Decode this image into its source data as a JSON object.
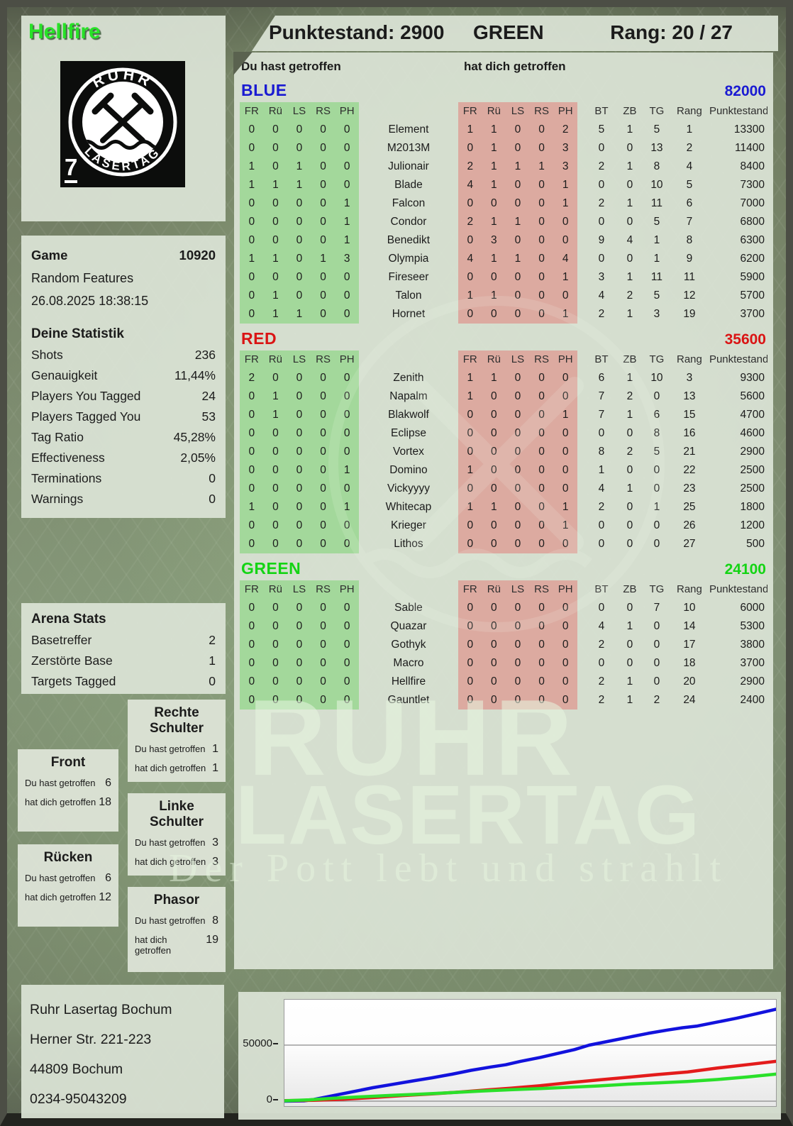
{
  "header": {
    "player_name": "Hellfire",
    "score": "Punktestand: 2900",
    "team": "GREEN",
    "rank": "Rang: 20 / 27"
  },
  "logo": {
    "arc_top": "RUHR",
    "arc_bottom": "LASERTAG",
    "badge": "7"
  },
  "main": {
    "left_col_label": "Du hast getroffen",
    "right_col_label": "hat dich getroffen",
    "sub_headers": [
      "FR",
      "Rü",
      "LS",
      "RS",
      "PH"
    ],
    "stat_headers": [
      "BT",
      "ZB",
      "TG",
      "Rang",
      "Punktestand:"
    ]
  },
  "sidebar": {
    "game": {
      "label": "Game",
      "number": "10920",
      "mode": "Random Features",
      "datetime": "26.08.2025 18:38:15"
    },
    "your_stats": {
      "title": "Deine Statistik",
      "rows": [
        [
          "Shots",
          "236"
        ],
        [
          "Genauigkeit",
          "11,44%"
        ],
        [
          "Players You Tagged",
          "24"
        ],
        [
          "Players Tagged You",
          "53"
        ],
        [
          "Tag Ratio",
          "45,28%"
        ],
        [
          "Effectiveness",
          "2,05%"
        ],
        [
          "Terminations",
          "0"
        ],
        [
          "Warnings",
          "0"
        ]
      ]
    },
    "arena_stats": {
      "title": "Arena Stats",
      "rows": [
        [
          "Basetreffer",
          "2"
        ],
        [
          "Zerstörte Base",
          "1"
        ],
        [
          "Targets Tagged",
          "0"
        ]
      ]
    },
    "zone_label_you": "Du hast getroffen",
    "zone_label_them": "hat dich getroffen",
    "zones": {
      "front": {
        "title": "Front",
        "you": "6",
        "them": "18"
      },
      "ruecken": {
        "title": "Rücken",
        "you": "6",
        "them": "12"
      },
      "rechte_schulter": {
        "title": "Rechte Schulter",
        "you": "1",
        "them": "1"
      },
      "linke_schulter": {
        "title": "Linke Schulter",
        "you": "3",
        "them": "3"
      },
      "phasor": {
        "title": "Phasor",
        "you": "8",
        "them": "19"
      }
    },
    "address": [
      "Ruhr Lasertag Bochum",
      "Herner Str. 221-223",
      "44809 Bochum",
      "0234-95043209"
    ]
  },
  "watermark": {
    "line1": "RUHR",
    "line2": "LASERTAG",
    "line3": "Der Pott lebt und strahlt"
  },
  "teams": [
    {
      "name": "BLUE",
      "color": "#1a1ad2",
      "total": "82000",
      "rows": [
        {
          "name": "Element",
          "you": [
            "0",
            "0",
            "0",
            "0",
            "0"
          ],
          "them": [
            "1",
            "1",
            "0",
            "0",
            "2"
          ],
          "stats": [
            "5",
            "1",
            "5",
            "1",
            "13300"
          ]
        },
        {
          "name": "M2013M",
          "you": [
            "0",
            "0",
            "0",
            "0",
            "0"
          ],
          "them": [
            "0",
            "1",
            "0",
            "0",
            "3"
          ],
          "stats": [
            "0",
            "0",
            "13",
            "2",
            "11400"
          ]
        },
        {
          "name": "Julionair",
          "you": [
            "1",
            "0",
            "1",
            "0",
            "0"
          ],
          "them": [
            "2",
            "1",
            "1",
            "1",
            "3"
          ],
          "stats": [
            "2",
            "1",
            "8",
            "4",
            "8400"
          ]
        },
        {
          "name": "Blade",
          "you": [
            "1",
            "1",
            "1",
            "0",
            "0"
          ],
          "them": [
            "4",
            "1",
            "0",
            "0",
            "1"
          ],
          "stats": [
            "0",
            "0",
            "10",
            "5",
            "7300"
          ]
        },
        {
          "name": "Falcon",
          "you": [
            "0",
            "0",
            "0",
            "0",
            "1"
          ],
          "them": [
            "0",
            "0",
            "0",
            "0",
            "1"
          ],
          "stats": [
            "2",
            "1",
            "11",
            "6",
            "7000"
          ]
        },
        {
          "name": "Condor",
          "you": [
            "0",
            "0",
            "0",
            "0",
            "1"
          ],
          "them": [
            "2",
            "1",
            "1",
            "0",
            "0"
          ],
          "stats": [
            "0",
            "0",
            "5",
            "7",
            "6800"
          ]
        },
        {
          "name": "Benedikt",
          "you": [
            "0",
            "0",
            "0",
            "0",
            "1"
          ],
          "them": [
            "0",
            "3",
            "0",
            "0",
            "0"
          ],
          "stats": [
            "9",
            "4",
            "1",
            "8",
            "6300"
          ]
        },
        {
          "name": "Olympia",
          "you": [
            "1",
            "1",
            "0",
            "1",
            "3"
          ],
          "them": [
            "4",
            "1",
            "1",
            "0",
            "4"
          ],
          "stats": [
            "0",
            "0",
            "1",
            "9",
            "6200"
          ]
        },
        {
          "name": "Fireseer",
          "you": [
            "0",
            "0",
            "0",
            "0",
            "0"
          ],
          "them": [
            "0",
            "0",
            "0",
            "0",
            "1"
          ],
          "stats": [
            "3",
            "1",
            "11",
            "11",
            "5900"
          ]
        },
        {
          "name": "Talon",
          "you": [
            "0",
            "1",
            "0",
            "0",
            "0"
          ],
          "them": [
            "1",
            "1",
            "0",
            "0",
            "0"
          ],
          "stats": [
            "4",
            "2",
            "5",
            "12",
            "5700"
          ]
        },
        {
          "name": "Hornet",
          "you": [
            "0",
            "1",
            "1",
            "0",
            "0"
          ],
          "them": [
            "0",
            "0",
            "0",
            "0",
            "1"
          ],
          "stats": [
            "2",
            "1",
            "3",
            "19",
            "3700"
          ]
        }
      ]
    },
    {
      "name": "RED",
      "color": "#da1414",
      "total": "35600",
      "rows": [
        {
          "name": "Zenith",
          "you": [
            "2",
            "0",
            "0",
            "0",
            "0"
          ],
          "them": [
            "1",
            "1",
            "0",
            "0",
            "0"
          ],
          "stats": [
            "6",
            "1",
            "10",
            "3",
            "9300"
          ]
        },
        {
          "name": "Napalm",
          "you": [
            "0",
            "1",
            "0",
            "0",
            "0"
          ],
          "them": [
            "1",
            "0",
            "0",
            "0",
            "0"
          ],
          "stats": [
            "7",
            "2",
            "0",
            "13",
            "5600"
          ]
        },
        {
          "name": "Blakwolf",
          "you": [
            "0",
            "1",
            "0",
            "0",
            "0"
          ],
          "them": [
            "0",
            "0",
            "0",
            "0",
            "1"
          ],
          "stats": [
            "7",
            "1",
            "6",
            "15",
            "4700"
          ]
        },
        {
          "name": "Eclipse",
          "you": [
            "0",
            "0",
            "0",
            "0",
            "0"
          ],
          "them": [
            "0",
            "0",
            "0",
            "0",
            "0"
          ],
          "stats": [
            "0",
            "0",
            "8",
            "16",
            "4600"
          ]
        },
        {
          "name": "Vortex",
          "you": [
            "0",
            "0",
            "0",
            "0",
            "0"
          ],
          "them": [
            "0",
            "0",
            "0",
            "0",
            "0"
          ],
          "stats": [
            "8",
            "2",
            "5",
            "21",
            "2900"
          ]
        },
        {
          "name": "Domino",
          "you": [
            "0",
            "0",
            "0",
            "0",
            "1"
          ],
          "them": [
            "1",
            "0",
            "0",
            "0",
            "0"
          ],
          "stats": [
            "1",
            "0",
            "0",
            "22",
            "2500"
          ]
        },
        {
          "name": "Vickyyyy",
          "you": [
            "0",
            "0",
            "0",
            "0",
            "0"
          ],
          "them": [
            "0",
            "0",
            "0",
            "0",
            "0"
          ],
          "stats": [
            "4",
            "1",
            "0",
            "23",
            "2500"
          ]
        },
        {
          "name": "Whitecap",
          "you": [
            "1",
            "0",
            "0",
            "0",
            "1"
          ],
          "them": [
            "1",
            "1",
            "0",
            "0",
            "1"
          ],
          "stats": [
            "2",
            "0",
            "1",
            "25",
            "1800"
          ]
        },
        {
          "name": "Krieger",
          "you": [
            "0",
            "0",
            "0",
            "0",
            "0"
          ],
          "them": [
            "0",
            "0",
            "0",
            "0",
            "1"
          ],
          "stats": [
            "0",
            "0",
            "0",
            "26",
            "1200"
          ]
        },
        {
          "name": "Lithos",
          "you": [
            "0",
            "0",
            "0",
            "0",
            "0"
          ],
          "them": [
            "0",
            "0",
            "0",
            "0",
            "0"
          ],
          "stats": [
            "0",
            "0",
            "0",
            "27",
            "500"
          ]
        }
      ]
    },
    {
      "name": "GREEN",
      "color": "#14d414",
      "total": "24100",
      "rows": [
        {
          "name": "Sable",
          "you": [
            "0",
            "0",
            "0",
            "0",
            "0"
          ],
          "them": [
            "0",
            "0",
            "0",
            "0",
            "0"
          ],
          "stats": [
            "0",
            "0",
            "7",
            "10",
            "6000"
          ]
        },
        {
          "name": "Quazar",
          "you": [
            "0",
            "0",
            "0",
            "0",
            "0"
          ],
          "them": [
            "0",
            "0",
            "0",
            "0",
            "0"
          ],
          "stats": [
            "4",
            "1",
            "0",
            "14",
            "5300"
          ]
        },
        {
          "name": "Gothyk",
          "you": [
            "0",
            "0",
            "0",
            "0",
            "0"
          ],
          "them": [
            "0",
            "0",
            "0",
            "0",
            "0"
          ],
          "stats": [
            "2",
            "0",
            "0",
            "17",
            "3800"
          ]
        },
        {
          "name": "Macro",
          "you": [
            "0",
            "0",
            "0",
            "0",
            "0"
          ],
          "them": [
            "0",
            "0",
            "0",
            "0",
            "0"
          ],
          "stats": [
            "0",
            "0",
            "0",
            "18",
            "3700"
          ]
        },
        {
          "name": "Hellfire",
          "you": [
            "0",
            "0",
            "0",
            "0",
            "0"
          ],
          "them": [
            "0",
            "0",
            "0",
            "0",
            "0"
          ],
          "stats": [
            "2",
            "1",
            "0",
            "20",
            "2900"
          ]
        },
        {
          "name": "Gauntlet",
          "you": [
            "0",
            "0",
            "0",
            "0",
            "0"
          ],
          "them": [
            "0",
            "0",
            "0",
            "0",
            "0"
          ],
          "stats": [
            "2",
            "1",
            "2",
            "24",
            "2400"
          ]
        }
      ]
    }
  ],
  "chart_data": {
    "type": "line",
    "title": "",
    "xlabel": "",
    "ylabel": "",
    "ylim": [
      0,
      88000
    ],
    "yticks": [
      "50000",
      "0"
    ],
    "gridlines": [
      50000,
      0
    ],
    "legend": "none",
    "series": [
      {
        "name": "BLUE",
        "color": "#1212dd",
        "final_value": 82000,
        "x": [
          0,
          0.04,
          0.06,
          0.1,
          0.14,
          0.18,
          0.22,
          0.26,
          0.3,
          0.34,
          0.38,
          0.42,
          0.45,
          0.48,
          0.52,
          0.56,
          0.59,
          0.62,
          0.66,
          0.7,
          0.74,
          0.78,
          0.81,
          0.84,
          0.88,
          0.92,
          0.96,
          1.0
        ],
        "y": [
          0,
          300,
          1500,
          5000,
          8500,
          12000,
          15000,
          18000,
          20800,
          24000,
          27500,
          30500,
          32500,
          35500,
          39000,
          43000,
          46000,
          50000,
          53500,
          57000,
          60500,
          63500,
          65500,
          67000,
          70500,
          74000,
          78000,
          82000
        ]
      },
      {
        "name": "RED",
        "color": "#e31b1b",
        "final_value": 35600,
        "x": [
          0,
          0.06,
          0.12,
          0.18,
          0.24,
          0.3,
          0.36,
          0.41,
          0.46,
          0.52,
          0.58,
          0.64,
          0.7,
          0.76,
          0.82,
          0.88,
          0.94,
          1.0
        ],
        "y": [
          500,
          800,
          1800,
          3200,
          5000,
          6500,
          8200,
          10000,
          11500,
          13800,
          16500,
          19000,
          21300,
          23800,
          26000,
          29500,
          32500,
          35600
        ]
      },
      {
        "name": "GREEN",
        "color": "#2ae02a",
        "final_value": 24100,
        "x": [
          0,
          0.05,
          0.1,
          0.16,
          0.22,
          0.28,
          0.34,
          0.4,
          0.46,
          0.52,
          0.58,
          0.64,
          0.7,
          0.76,
          0.82,
          0.88,
          0.94,
          1.0
        ],
        "y": [
          300,
          1200,
          2600,
          4000,
          5200,
          6300,
          7600,
          9000,
          10200,
          11200,
          12400,
          13600,
          15200,
          16300,
          17500,
          19300,
          21500,
          24100
        ]
      }
    ]
  }
}
